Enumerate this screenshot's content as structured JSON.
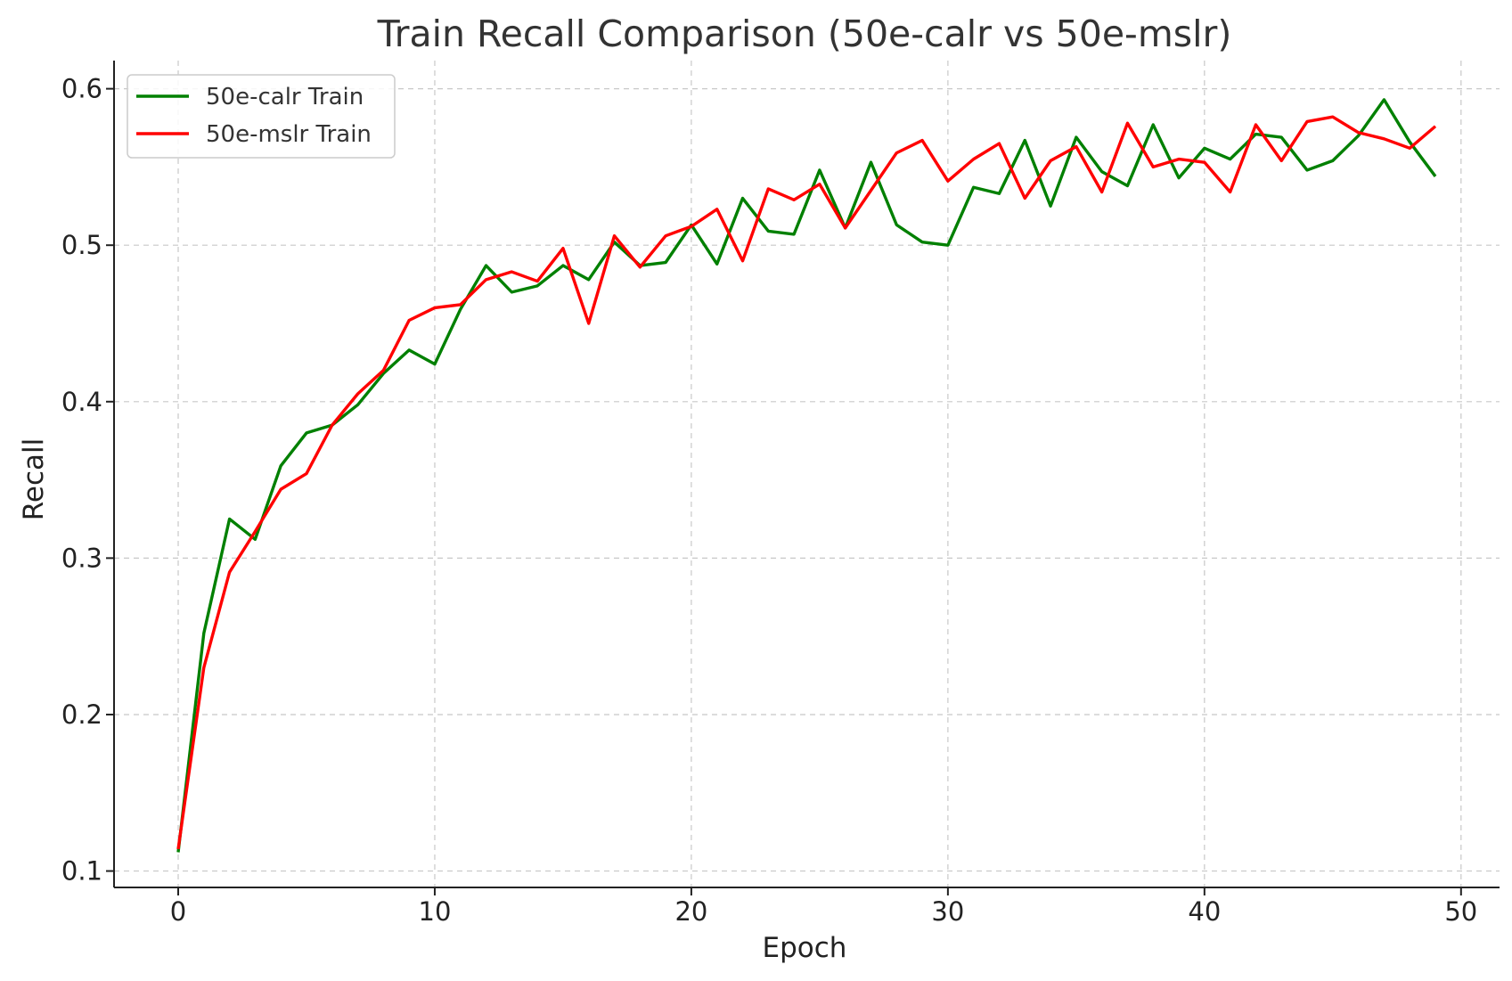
{
  "chart_data": {
    "type": "line",
    "title": "Train Recall Comparison (50e-calr vs 50e-mslr)",
    "xlabel": "Epoch",
    "ylabel": "Recall",
    "xlim": [
      -2.5,
      51.5
    ],
    "ylim": [
      0.0895,
      0.618
    ],
    "xticks": [
      0,
      10,
      20,
      30,
      40,
      50
    ],
    "yticks": [
      0.1,
      0.2,
      0.3,
      0.4,
      0.5,
      0.6
    ],
    "xtick_labels": [
      "0",
      "10",
      "20",
      "30",
      "40",
      "50"
    ],
    "ytick_labels": [
      "0.1",
      "0.2",
      "0.3",
      "0.4",
      "0.5",
      "0.6"
    ],
    "grid": true,
    "legend_position": "top-left",
    "x": [
      0,
      1,
      2,
      3,
      4,
      5,
      6,
      7,
      8,
      9,
      10,
      11,
      12,
      13,
      14,
      15,
      16,
      17,
      18,
      19,
      20,
      21,
      22,
      23,
      24,
      25,
      26,
      27,
      28,
      29,
      30,
      31,
      32,
      33,
      34,
      35,
      36,
      37,
      38,
      39,
      40,
      41,
      42,
      43,
      44,
      45,
      46,
      47,
      48,
      49
    ],
    "series": [
      {
        "name": "50e-calr Train",
        "color": "#008000",
        "values": [
          0.112,
          0.252,
          0.325,
          0.312,
          0.359,
          0.38,
          0.385,
          0.398,
          0.418,
          0.433,
          0.424,
          0.459,
          0.487,
          0.47,
          0.474,
          0.487,
          0.478,
          0.502,
          0.487,
          0.489,
          0.513,
          0.488,
          0.53,
          0.509,
          0.507,
          0.548,
          0.511,
          0.553,
          0.513,
          0.502,
          0.5,
          0.537,
          0.533,
          0.567,
          0.525,
          0.569,
          0.547,
          0.538,
          0.577,
          0.543,
          0.562,
          0.555,
          0.571,
          0.569,
          0.548,
          0.554,
          0.57,
          0.593,
          0.566,
          0.544
        ]
      },
      {
        "name": "50e-mslr Train",
        "color": "#ff0000",
        "values": [
          0.114,
          0.23,
          0.291,
          0.317,
          0.344,
          0.354,
          0.385,
          0.405,
          0.42,
          0.452,
          0.46,
          0.462,
          0.478,
          0.483,
          0.477,
          0.498,
          0.45,
          0.506,
          0.486,
          0.506,
          0.512,
          0.523,
          0.49,
          0.536,
          0.529,
          0.539,
          0.511,
          0.535,
          0.559,
          0.567,
          0.541,
          0.555,
          0.565,
          0.53,
          0.554,
          0.563,
          0.534,
          0.578,
          0.55,
          0.555,
          0.553,
          0.534,
          0.577,
          0.554,
          0.579,
          0.582,
          0.572,
          0.568,
          0.562,
          0.576
        ]
      }
    ]
  }
}
